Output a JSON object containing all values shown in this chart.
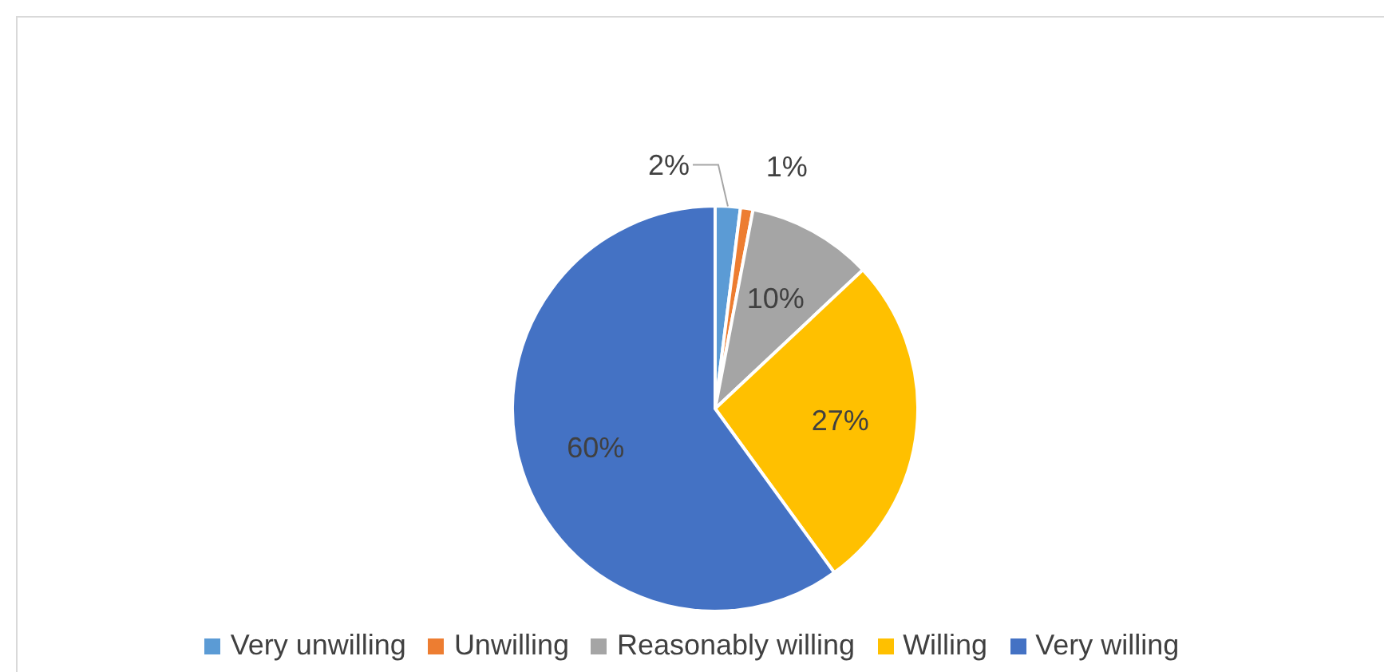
{
  "chart_data": {
    "type": "pie",
    "categories": [
      "Very unwilling",
      "Unwilling",
      "Reasonably willing",
      "Willing",
      "Very willing"
    ],
    "values": [
      2,
      1,
      10,
      27,
      60
    ],
    "colors": [
      "#5b9bd5",
      "#ed7d31",
      "#a5a5a5",
      "#ffc000",
      "#4472c4"
    ],
    "value_labels": [
      "2%",
      "1%",
      "10%",
      "27%",
      "60%"
    ],
    "legend": "bottom"
  }
}
